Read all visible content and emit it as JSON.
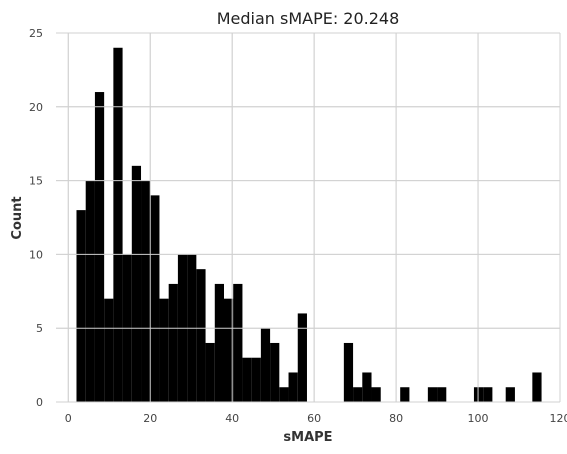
{
  "chart_data": {
    "type": "bar",
    "title": "Median sMAPE: 20.248",
    "xlabel": "sMAPE",
    "ylabel": "Count",
    "xlim": [
      -3,
      120
    ],
    "ylim": [
      0,
      25
    ],
    "x_ticks": [
      0,
      20,
      40,
      60,
      80,
      100,
      120
    ],
    "y_ticks": [
      0,
      5,
      10,
      15,
      20,
      25
    ],
    "grid": true,
    "bar_color": "#000000",
    "grid_color": "#dcdcdc",
    "bin_width": 2.25,
    "bins": [
      {
        "x0": 2.0,
        "value": 13
      },
      {
        "x0": 4.25,
        "value": 15
      },
      {
        "x0": 6.5,
        "value": 21
      },
      {
        "x0": 8.75,
        "value": 7
      },
      {
        "x0": 11.0,
        "value": 24
      },
      {
        "x0": 13.25,
        "value": 10
      },
      {
        "x0": 15.5,
        "value": 16
      },
      {
        "x0": 17.75,
        "value": 15
      },
      {
        "x0": 20.0,
        "value": 14
      },
      {
        "x0": 22.25,
        "value": 7
      },
      {
        "x0": 24.5,
        "value": 8
      },
      {
        "x0": 26.75,
        "value": 10
      },
      {
        "x0": 29.0,
        "value": 10
      },
      {
        "x0": 31.25,
        "value": 9
      },
      {
        "x0": 33.5,
        "value": 4
      },
      {
        "x0": 35.75,
        "value": 8
      },
      {
        "x0": 38.0,
        "value": 7
      },
      {
        "x0": 40.25,
        "value": 8
      },
      {
        "x0": 42.5,
        "value": 3
      },
      {
        "x0": 44.75,
        "value": 3
      },
      {
        "x0": 47.0,
        "value": 5
      },
      {
        "x0": 49.25,
        "value": 4
      },
      {
        "x0": 51.5,
        "value": 1
      },
      {
        "x0": 53.75,
        "value": 2
      },
      {
        "x0": 56.0,
        "value": 6
      },
      {
        "x0": 67.25,
        "value": 4
      },
      {
        "x0": 69.5,
        "value": 1
      },
      {
        "x0": 71.75,
        "value": 2
      },
      {
        "x0": 74.0,
        "value": 1
      },
      {
        "x0": 81.0,
        "value": 1
      },
      {
        "x0": 87.75,
        "value": 1
      },
      {
        "x0": 90.0,
        "value": 1
      },
      {
        "x0": 99.0,
        "value": 1
      },
      {
        "x0": 101.25,
        "value": 1
      },
      {
        "x0": 106.75,
        "value": 1
      },
      {
        "x0": 113.25,
        "value": 2
      }
    ]
  }
}
